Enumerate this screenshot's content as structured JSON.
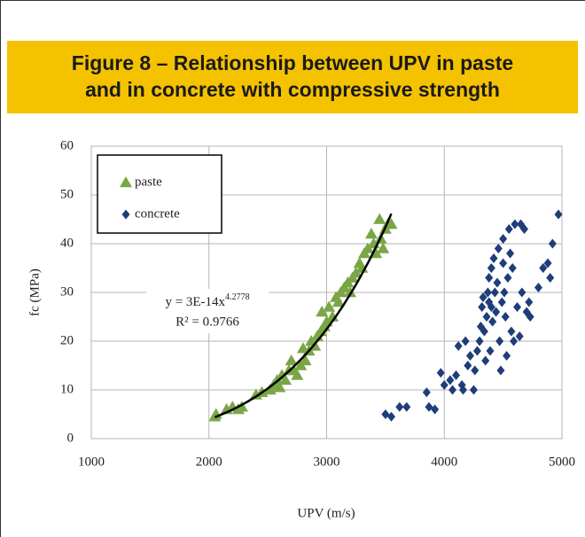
{
  "chart_data": {
    "type": "scatter",
    "title": [
      "Figure 8 – Relationship between UPV in paste",
      "and in concrete with compressive strength"
    ],
    "x_label": "UPV (m/s)",
    "y_label": "fc (MPa)",
    "xlim": [
      1000,
      5000
    ],
    "xticks": [
      1000,
      2000,
      3000,
      4000,
      5000
    ],
    "ylim": [
      0,
      60
    ],
    "yticks": [
      0,
      10,
      20,
      30,
      40,
      50,
      60
    ],
    "grid": true,
    "legend": "top-left",
    "series": [
      {
        "name": "paste",
        "color": "#7aa646",
        "marker": "triangle",
        "x": [
          2050,
          2060,
          2150,
          2200,
          2250,
          2280,
          2400,
          2450,
          2520,
          2550,
          2580,
          2600,
          2620,
          2650,
          2680,
          2700,
          2720,
          2750,
          2780,
          2800,
          2820,
          2850,
          2870,
          2900,
          2920,
          2950,
          2960,
          2980,
          3000,
          3020,
          3050,
          3080,
          3100,
          3120,
          3150,
          3180,
          3200,
          3220,
          3250,
          3280,
          3300,
          3320,
          3350,
          3380,
          3400,
          3420,
          3450,
          3460,
          3480,
          3500,
          3520,
          3550
        ],
        "values": [
          4.5,
          5,
          6,
          6.5,
          6,
          6.5,
          9,
          9.5,
          10,
          11,
          12,
          10.5,
          13,
          12,
          14,
          16,
          14,
          13,
          15,
          18.5,
          16,
          18,
          20,
          19,
          21,
          22,
          26,
          23,
          24,
          27,
          25,
          29,
          28,
          30,
          31,
          32,
          30,
          33,
          34,
          36,
          35,
          38,
          39,
          42,
          40,
          38,
          45,
          41,
          39,
          43,
          44,
          44
        ]
      },
      {
        "name": "concrete",
        "color": "#1f3d78",
        "marker": "diamond",
        "x": [
          3500,
          3550,
          3620,
          3680,
          3850,
          3870,
          3920,
          3970,
          4000,
          4050,
          4070,
          4100,
          4120,
          4150,
          4160,
          4180,
          4200,
          4220,
          4250,
          4260,
          4280,
          4300,
          4310,
          4320,
          4330,
          4340,
          4350,
          4360,
          4370,
          4380,
          4380,
          4390,
          4400,
          4400,
          4410,
          4420,
          4430,
          4440,
          4450,
          4460,
          4470,
          4480,
          4490,
          4500,
          4500,
          4510,
          4520,
          4530,
          4540,
          4550,
          4560,
          4570,
          4580,
          4590,
          4600,
          4620,
          4640,
          4650,
          4660,
          4680,
          4700,
          4720,
          4730,
          4800,
          4840,
          4880,
          4900,
          4920,
          4970
        ],
        "values": [
          5,
          4.5,
          6.5,
          6.5,
          9.5,
          6.5,
          6,
          13.5,
          11,
          12,
          10,
          13,
          19,
          11,
          10,
          20,
          15,
          17,
          10,
          14,
          18,
          20,
          23,
          27,
          29,
          22,
          16,
          25,
          30,
          28,
          33,
          18,
          27,
          35,
          24,
          37,
          30,
          26,
          32,
          39,
          20,
          14,
          28,
          36,
          41,
          30,
          25,
          17,
          33,
          43,
          38,
          22,
          35,
          20,
          44,
          27,
          21,
          44,
          30,
          43,
          26,
          28,
          25,
          31,
          35,
          36,
          33,
          40,
          46
        ]
      }
    ],
    "trendline": {
      "series": "paste",
      "coefficient": 3e-14,
      "exponent": 4.2778,
      "x_range": [
        2050,
        3550
      ],
      "equation_text": "y = 3E-14x",
      "exponent_text": "4.2778",
      "r2_text": "R² = 0.9766"
    }
  }
}
